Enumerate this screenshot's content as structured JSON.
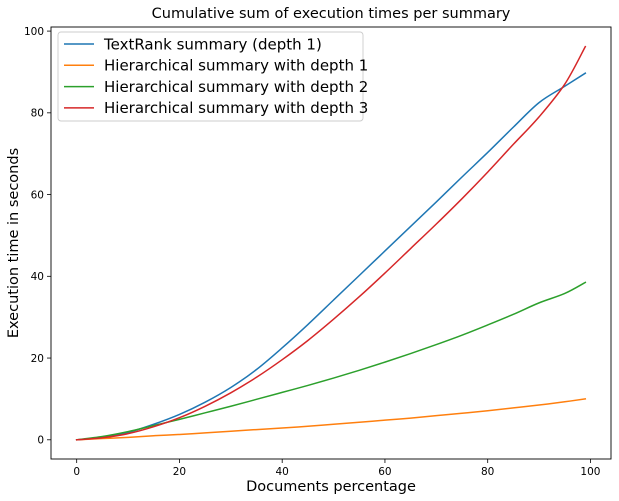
{
  "chart_data": {
    "type": "line",
    "title": "Cumulative sum of execution times per summary",
    "xlabel": "Documents percentage",
    "ylabel": "Execution time in seconds",
    "xlim": [
      -5,
      104
    ],
    "ylim": [
      -4.7,
      101
    ],
    "xticks": [
      0,
      20,
      40,
      60,
      80,
      100
    ],
    "yticks": [
      0,
      20,
      40,
      60,
      80,
      100
    ],
    "grid": false,
    "legend_position": "top-left",
    "series": [
      {
        "name": "TextRank summary (depth 1)",
        "color": "#1f77b4",
        "x": [
          0,
          5,
          10,
          15,
          20,
          25,
          30,
          35,
          40,
          45,
          50,
          55,
          60,
          65,
          70,
          75,
          80,
          85,
          90,
          95,
          99
        ],
        "y": [
          0,
          0.6,
          1.8,
          3.8,
          6.2,
          9.2,
          12.8,
          17.2,
          22.5,
          28.2,
          34.2,
          40.2,
          46.2,
          52.2,
          58.2,
          64.3,
          70.3,
          76.5,
          82.5,
          86.5,
          89.7
        ]
      },
      {
        "name": "Hierarchical summary with depth 1",
        "color": "#ff7f0e",
        "x": [
          0,
          5,
          10,
          15,
          20,
          25,
          30,
          35,
          40,
          45,
          50,
          55,
          60,
          65,
          70,
          75,
          80,
          85,
          90,
          95,
          99
        ],
        "y": [
          0,
          0.3,
          0.6,
          1.0,
          1.3,
          1.7,
          2.1,
          2.5,
          2.9,
          3.3,
          3.8,
          4.3,
          4.8,
          5.3,
          5.9,
          6.5,
          7.1,
          7.8,
          8.5,
          9.3,
          10.0
        ]
      },
      {
        "name": "Hierarchical summary with depth 2",
        "color": "#2ca02c",
        "x": [
          0,
          5,
          10,
          15,
          20,
          25,
          30,
          35,
          40,
          45,
          50,
          55,
          60,
          65,
          70,
          75,
          80,
          85,
          90,
          95,
          99
        ],
        "y": [
          0,
          0.8,
          2.0,
          3.5,
          5.0,
          6.6,
          8.2,
          9.9,
          11.6,
          13.3,
          15.1,
          17.0,
          19.0,
          21.1,
          23.3,
          25.6,
          28.1,
          30.7,
          33.5,
          35.8,
          38.5
        ]
      },
      {
        "name": "Hierarchical summary with depth 3",
        "color": "#d62728",
        "x": [
          0,
          5,
          10,
          15,
          20,
          25,
          30,
          35,
          40,
          45,
          50,
          55,
          60,
          65,
          70,
          75,
          80,
          85,
          90,
          95,
          99
        ],
        "y": [
          0,
          0.5,
          1.5,
          3.2,
          5.4,
          8.2,
          11.5,
          15.3,
          19.6,
          24.3,
          29.5,
          35.0,
          40.8,
          46.8,
          52.8,
          59.0,
          65.5,
          72.3,
          79.0,
          87.0,
          96.2
        ]
      }
    ]
  }
}
